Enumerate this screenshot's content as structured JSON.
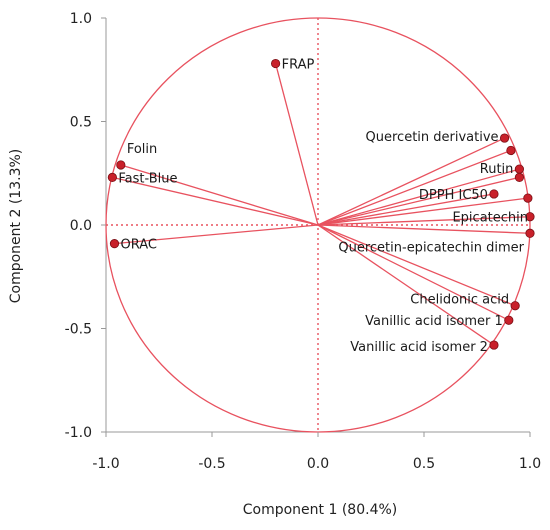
{
  "chart_data": {
    "type": "scatter",
    "subtype": "pca-loadings-biplot",
    "xlabel": "Component 1 (80.4%)",
    "ylabel": "Component 2 (13.3%)",
    "xlim": [
      -1.0,
      1.0
    ],
    "ylim": [
      -1.0,
      1.0
    ],
    "x_ticks": [
      -1.0,
      -0.5,
      0.0,
      0.5,
      1.0
    ],
    "y_ticks": [
      1.0,
      0.5,
      0.0,
      -0.5,
      -1.0
    ],
    "x_tick_labels": [
      "-1.0",
      "-0.5",
      "0.0",
      "0.5",
      "1.0"
    ],
    "y_tick_labels": [
      "1.0",
      "0.5",
      "0.0",
      "-0.5",
      "-1.0"
    ],
    "unit_circle": true,
    "reference_lines": [
      0,
      0
    ],
    "colors": {
      "lines": "#e8525f",
      "points": "#c8202a",
      "circle": "#e8525f"
    },
    "points": [
      {
        "label": "FRAP",
        "x": -0.2,
        "y": 0.78
      },
      {
        "label": "Folin",
        "x": -0.93,
        "y": 0.29
      },
      {
        "label": "Fast-Blue",
        "x": -0.97,
        "y": 0.23
      },
      {
        "label": "ORAC",
        "x": -0.96,
        "y": -0.09
      },
      {
        "label": "Quercetin derivative",
        "x": 0.88,
        "y": 0.42
      },
      {
        "label": "",
        "x": 0.91,
        "y": 0.36
      },
      {
        "label": "Rutin",
        "x": 0.95,
        "y": 0.27
      },
      {
        "label": "",
        "x": 0.95,
        "y": 0.23
      },
      {
        "label": "DPPH IC50",
        "x": 0.83,
        "y": 0.15
      },
      {
        "label": "",
        "x": 0.99,
        "y": 0.13
      },
      {
        "label": "Epicatechin",
        "x": 1.0,
        "y": 0.04
      },
      {
        "label": "Quercetin-epicatechin dimer",
        "x": 1.0,
        "y": -0.04
      },
      {
        "label": "Chelidonic acid",
        "x": 0.93,
        "y": -0.39
      },
      {
        "label": "Vanillic acid isomer 1",
        "x": 0.9,
        "y": -0.46
      },
      {
        "label": "Vanillic acid isomer 2",
        "x": 0.83,
        "y": -0.58
      }
    ]
  }
}
